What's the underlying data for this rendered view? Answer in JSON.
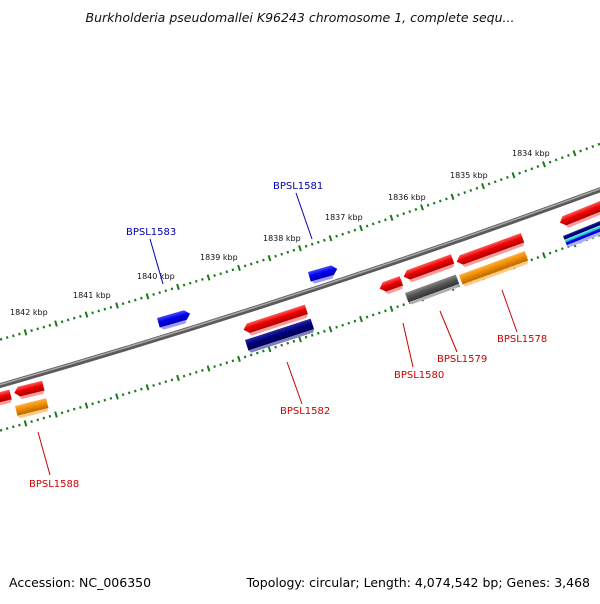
{
  "title": "Burkholderia pseudomallei K96243 chromosome 1, complete sequ...",
  "footer": {
    "accession": "Accession: NC_006350",
    "summary": "Topology: circular; Length: 4,074,542 bp; Genes: 3,468"
  },
  "scale_labels": [
    "1842 kbp",
    "1841 kbp",
    "1840 kbp",
    "1839 kbp",
    "1838 kbp",
    "1837 kbp",
    "1836 kbp",
    "1835 kbp",
    "1834 kbp"
  ],
  "gene_labels": [
    {
      "text": "BPSL1583",
      "color": "#0000b3"
    },
    {
      "text": "BPSL1581",
      "color": "#0000b3"
    },
    {
      "text": "BPSL1582",
      "color": "#cc0000"
    },
    {
      "text": "BPSL1580",
      "color": "#cc0000"
    },
    {
      "text": "BPSL1579",
      "color": "#cc0000"
    },
    {
      "text": "BPSL1578",
      "color": "#cc0000"
    },
    {
      "text": "BPSL1588",
      "color": "#cc0000"
    }
  ],
  "colors": {
    "backbone": "#777777",
    "tick": "#1a7a1a",
    "forward_gene": "#0000ee",
    "reverse_gene": "#ee0000",
    "orange_feature": "#f08c00",
    "navy_feature": "#000080",
    "gray_feature": "#555555",
    "cyan_feature": "#00cccc"
  }
}
